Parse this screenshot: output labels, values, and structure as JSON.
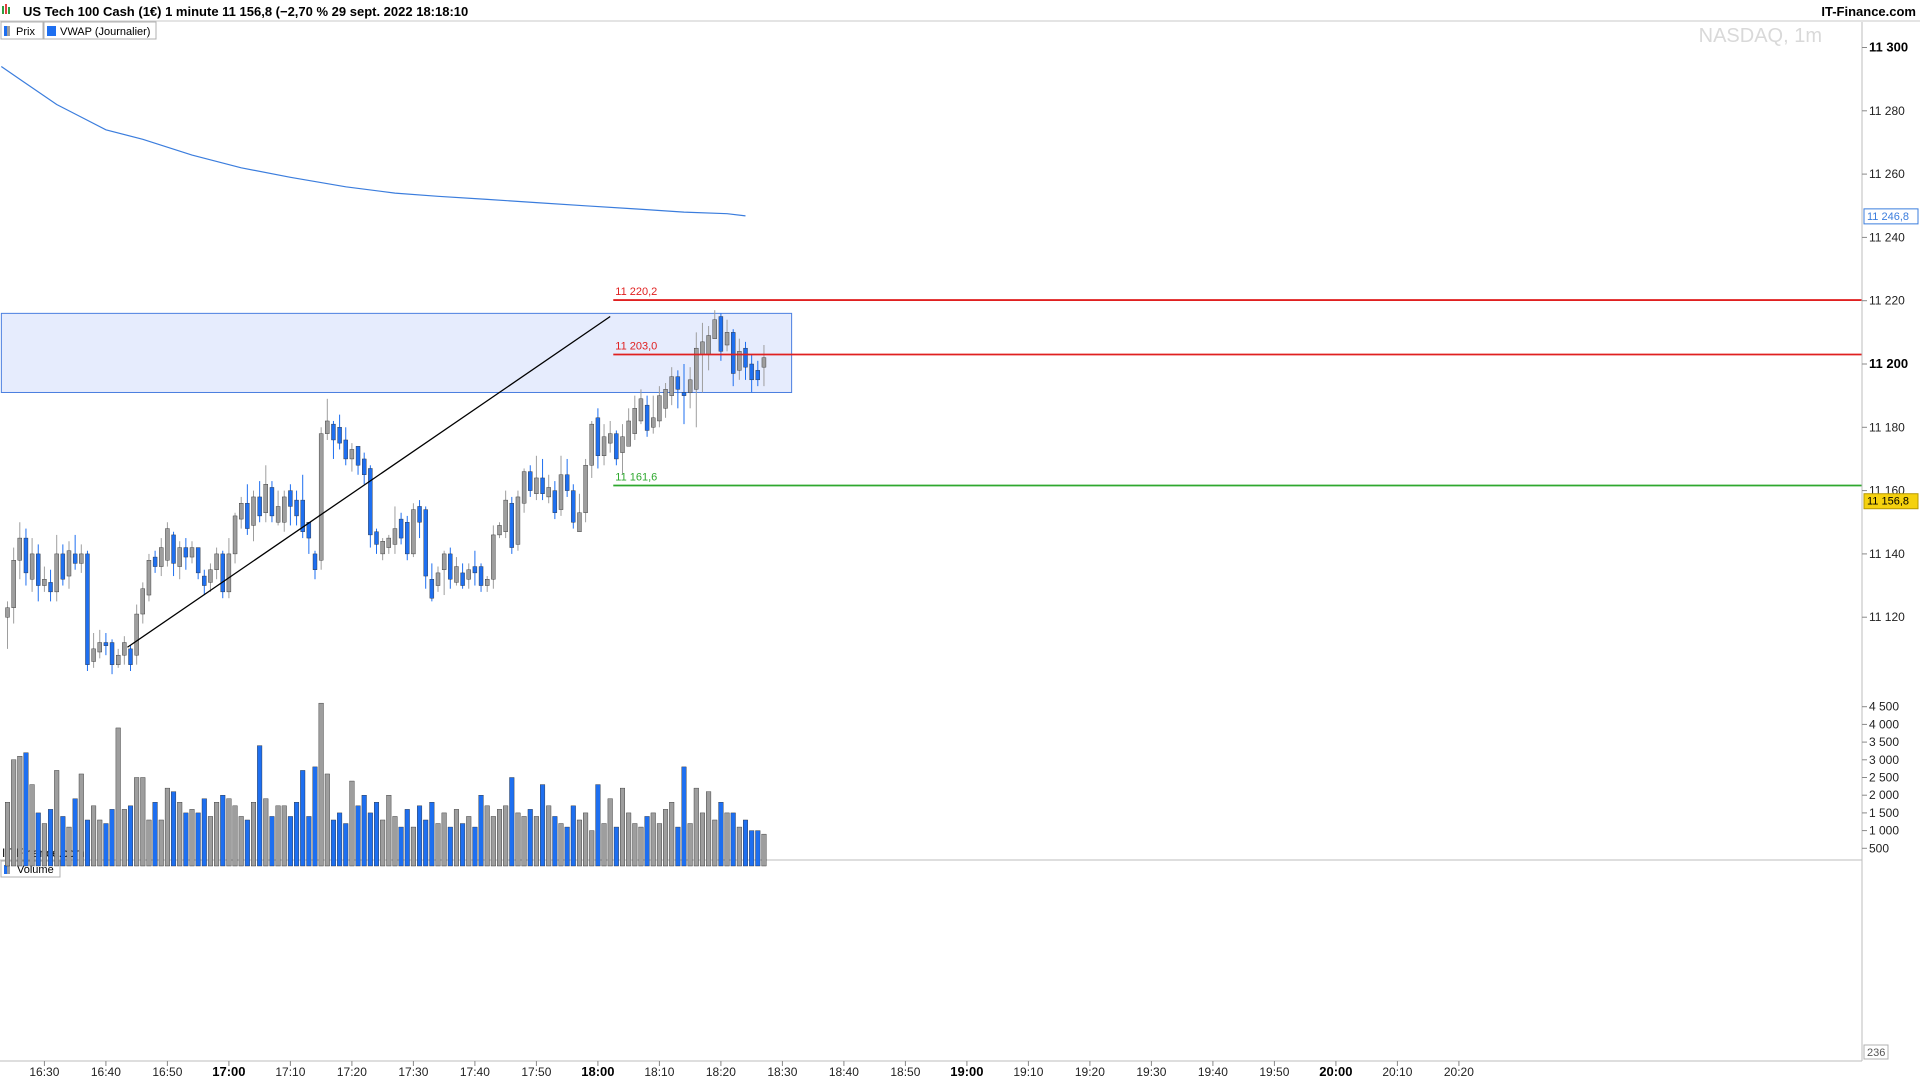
{
  "header": {
    "instrument_label": "US Tech 100 Cash (1€) 1 minute 11 156,8 (−2,70 % 29 sept. 2022 18:18:10",
    "brand_right": "IT-Finance.com"
  },
  "legend": {
    "price_label": "Prix",
    "vwap_label": "VWAP (Journalier)",
    "volume_label": "Volume"
  },
  "watermark": "NASDAQ, 1m",
  "brand_bottom_left": "IT-Finance.com",
  "colors": {
    "up": "#1e6ff0",
    "down": "#9e9e9e",
    "vwap": "#3b7ddd",
    "resistance": "#e02020",
    "support": "#2ea82e",
    "zone_fill": "#e6ecfd",
    "zone_border": "#4a7fe0",
    "current_price_bg": "#f5d10e"
  },
  "chart_data": {
    "type": "candlestick",
    "title": "US Tech 100 Cash (1€) 1 minute",
    "y_ticks": [
      11120,
      11140,
      11160,
      11180,
      11200,
      11220,
      11240,
      11260,
      11280,
      11300
    ],
    "y_tick_labels": [
      "11 120",
      "11 140",
      "11 160",
      "11 180",
      "11 200",
      "11 220",
      "11 240",
      "11 260",
      "11 280",
      "11 300"
    ],
    "y_tick_bold": [
      11200,
      11300
    ],
    "x_ticks": [
      "16:30",
      "16:40",
      "16:50",
      "17:00",
      "17:10",
      "17:20",
      "17:30",
      "17:40",
      "17:50",
      "18:00",
      "18:10",
      "18:20",
      "18:30",
      "18:40",
      "18:50",
      "19:00",
      "19:10",
      "19:20",
      "19:30",
      "19:40",
      "19:50",
      "20:00",
      "20:10",
      "20:20"
    ],
    "x_tick_bold": [
      "17:00",
      "18:00",
      "19:00",
      "20:00"
    ],
    "start_time": "16:24",
    "current_price": 11156.8,
    "current_price_label": "11 156,8",
    "vwap_last_label": "11 246,8",
    "vwap_last": 11246.8,
    "vwap": [
      [
        -1,
        11294
      ],
      [
        2,
        11290
      ],
      [
        8,
        11282
      ],
      [
        11,
        11279
      ],
      [
        16,
        11274
      ],
      [
        22,
        11271
      ],
      [
        30,
        11266
      ],
      [
        38,
        11262
      ],
      [
        46,
        11259
      ],
      [
        55,
        11256
      ],
      [
        63,
        11254
      ],
      [
        70,
        11253
      ],
      [
        78,
        11252
      ],
      [
        86,
        11251
      ],
      [
        94,
        11250
      ],
      [
        102,
        11249
      ],
      [
        110,
        11248
      ],
      [
        117,
        11247.5
      ],
      [
        120,
        11246.8
      ]
    ],
    "levels": [
      {
        "value": 11220.2,
        "label": "11 220,2",
        "color": "resistance",
        "from": 98.5
      },
      {
        "value": 11203.0,
        "label": "11 203,0",
        "color": "resistance",
        "from": 98.5
      },
      {
        "value": 11161.6,
        "label": "11 161,6",
        "color": "support",
        "from": 98.5
      }
    ],
    "zone": {
      "from": -1,
      "to": 127.5,
      "top": 11216,
      "bottom": 11191
    },
    "trendline": {
      "from": [
        19.5,
        11110.5
      ],
      "to": [
        98,
        11215
      ]
    },
    "volume_ticks": [
      500,
      1000,
      1500,
      2000,
      2500,
      3000,
      3500,
      4000,
      4500
    ],
    "volume_tick_labels": [
      "500",
      "1 000",
      "1 500",
      "2 000",
      "2 500",
      "3 000",
      "3 500",
      "4 000",
      "4 500"
    ],
    "last_volume_label": "236",
    "candles": [
      [
        11123,
        11120,
        11125,
        11110,
        1800
      ],
      [
        11138,
        11123,
        11142,
        11118,
        3000
      ],
      [
        11145,
        11138,
        11150,
        11132,
        3100
      ],
      [
        11134,
        11145,
        11148,
        11130,
        3200
      ],
      [
        11140,
        11132,
        11145,
        11128,
        2300
      ],
      [
        11130,
        11140,
        11143,
        11125,
        1500
      ],
      [
        11132,
        11130,
        11136,
        11128,
        1200
      ],
      [
        11128,
        11131,
        11135,
        11125,
        1600
      ],
      [
        11140,
        11128,
        11146,
        11125,
        2700
      ],
      [
        11132,
        11140,
        11143,
        11130,
        1400
      ],
      [
        11141,
        11133,
        11144,
        11129,
        1100
      ],
      [
        11137,
        11140,
        11146,
        11135,
        1900
      ],
      [
        11140,
        11137,
        11143,
        11134,
        2600
      ],
      [
        11105,
        11140,
        11141,
        11103,
        1300
      ],
      [
        11110,
        11106,
        11115,
        11104,
        1700
      ],
      [
        11112,
        11109,
        11116,
        11107,
        1300
      ],
      [
        11111,
        11112,
        11115,
        11108,
        1200
      ],
      [
        11105,
        11112,
        11113,
        11102,
        1600
      ],
      [
        11108,
        11105,
        11110,
        11104,
        3900
      ],
      [
        11112,
        11108,
        11114,
        11105,
        1600
      ],
      [
        11105,
        11110,
        11111,
        11103,
        1700
      ],
      [
        11121,
        11108,
        11124,
        11105,
        2500
      ],
      [
        11129,
        11121,
        11131,
        11118,
        2500
      ],
      [
        11138,
        11127,
        11140,
        11125,
        1300
      ],
      [
        11136,
        11139,
        11141,
        11134,
        1800
      ],
      [
        11142,
        11136,
        11145,
        11133,
        1300
      ],
      [
        11148,
        11138,
        11150,
        11136,
        2200
      ],
      [
        11137,
        11146,
        11147,
        11133,
        2100
      ],
      [
        11142,
        11136,
        11144,
        11132,
        1800
      ],
      [
        11139,
        11142,
        11145,
        11135,
        1500
      ],
      [
        11142,
        11139,
        11144,
        11137,
        1600
      ],
      [
        11134,
        11142,
        11142,
        11132,
        1500
      ],
      [
        11130,
        11133,
        11135,
        11127,
        1900
      ],
      [
        11135,
        11131,
        11137,
        11128,
        1400
      ],
      [
        11140,
        11135,
        11142,
        11132,
        1800
      ],
      [
        11128,
        11140,
        11141,
        11126,
        2000
      ],
      [
        11140,
        11128,
        11145,
        11126,
        1900
      ],
      [
        11152,
        11140,
        11153,
        11137,
        1700
      ],
      [
        11156,
        11151,
        11158,
        11148,
        1400
      ],
      [
        11148,
        11156,
        11162,
        11146,
        1300
      ],
      [
        11158,
        11149,
        11160,
        11144,
        1800
      ],
      [
        11152,
        11158,
        11163,
        11150,
        3400
      ],
      [
        11162,
        11153,
        11168,
        11150,
        1900
      ],
      [
        11152,
        11161,
        11163,
        11150,
        1400
      ],
      [
        11155,
        11150,
        11160,
        11149,
        1700
      ],
      [
        11158,
        11150,
        11160,
        11147,
        1700
      ],
      [
        11155,
        11160,
        11162,
        11149,
        1400
      ],
      [
        11152,
        11157,
        11160,
        11149,
        1800
      ],
      [
        11147,
        11157,
        11165,
        11145,
        2700
      ],
      [
        11145,
        11150,
        11150,
        11140,
        1400
      ],
      [
        11135,
        11140,
        11141,
        11132,
        2800
      ],
      [
        11178,
        11138,
        11180,
        11135,
        4600
      ],
      [
        11182,
        11178,
        11189,
        11176,
        2600
      ],
      [
        11176,
        11181,
        11182,
        11170,
        1300
      ],
      [
        11175,
        11180,
        11184,
        11173,
        1500
      ],
      [
        11170,
        11176,
        11180,
        11168,
        1200
      ],
      [
        11173,
        11170,
        11175,
        11166,
        2400
      ],
      [
        11168,
        11174,
        11174,
        11165,
        1700
      ],
      [
        11165,
        11170,
        11172,
        11162,
        2000
      ],
      [
        11146,
        11167,
        11168,
        11142,
        1500
      ],
      [
        11143,
        11147,
        11148,
        11140,
        1800
      ],
      [
        11144,
        11140,
        11145,
        11138,
        1300
      ],
      [
        11145,
        11142,
        11146,
        11140,
        2000
      ],
      [
        11148,
        11143,
        11155,
        11140,
        1400
      ],
      [
        11145,
        11151,
        11153,
        11143,
        1100
      ],
      [
        11140,
        11150,
        11152,
        11138,
        1600
      ],
      [
        11154,
        11140,
        11156,
        11139,
        1100
      ],
      [
        11150,
        11155,
        11157,
        11145,
        1700
      ],
      [
        11133,
        11154,
        11155,
        11129,
        1300
      ],
      [
        11126,
        11132,
        11137,
        11125,
        1800
      ],
      [
        11134,
        11130,
        11136,
        11128,
        1200
      ],
      [
        11140,
        11135,
        11141,
        11127,
        1500
      ],
      [
        11132,
        11140,
        11142,
        11129,
        1100
      ],
      [
        11136,
        11131,
        11139,
        11130,
        1600
      ],
      [
        11130,
        11134,
        11137,
        11129,
        1200
      ],
      [
        11135,
        11132,
        11137,
        11129,
        1400
      ],
      [
        11134,
        11136,
        11141,
        11130,
        1100
      ],
      [
        11130,
        11136,
        11137,
        11128,
        2000
      ],
      [
        11132,
        11130,
        11133,
        11128,
        1700
      ],
      [
        11146,
        11132,
        11149,
        11129,
        1400
      ],
      [
        11149,
        11146,
        11150,
        11145,
        1600
      ],
      [
        11157,
        11147,
        11160,
        11145,
        1700
      ],
      [
        11142,
        11156,
        11158,
        11140,
        2500
      ],
      [
        11158,
        11143,
        11160,
        11141,
        1500
      ],
      [
        11166,
        11156,
        11167,
        11153,
        1400
      ],
      [
        11160,
        11166,
        11168,
        11158,
        1600
      ],
      [
        11164,
        11159,
        11171,
        11157,
        1400
      ],
      [
        11159,
        11164,
        11170,
        11157,
        2300
      ],
      [
        11161,
        11158,
        11165,
        11156,
        1700
      ],
      [
        11153,
        11160,
        11163,
        11151,
        1400
      ],
      [
        11165,
        11154,
        11171,
        11152,
        1200
      ],
      [
        11160,
        11165,
        11170,
        11158,
        1100
      ],
      [
        11150,
        11160,
        11162,
        11148,
        1700
      ],
      [
        11153,
        11147,
        11159,
        11148,
        1300
      ],
      [
        11168,
        11153,
        11170,
        11150,
        1500
      ],
      [
        11181,
        11168,
        11182,
        11164,
        1000
      ],
      [
        11171,
        11183,
        11186,
        11167,
        2300
      ],
      [
        11177,
        11171,
        11181,
        11168,
        1200
      ],
      [
        11178,
        11175,
        11182,
        11172,
        1900
      ],
      [
        11170,
        11178,
        11179,
        11168,
        1100
      ],
      [
        11177,
        11172,
        11181,
        11165,
        2200
      ],
      [
        11182,
        11174,
        11186,
        11176,
        1500
      ],
      [
        11186,
        11178,
        11190,
        11176,
        1200
      ],
      [
        11189,
        11182,
        11192,
        11181,
        1100
      ],
      [
        11179,
        11187,
        11190,
        11177,
        1400
      ],
      [
        11183,
        11180,
        11190,
        11178,
        1500
      ],
      [
        11190,
        11182,
        11193,
        11180,
        1200
      ],
      [
        11192,
        11186,
        11194,
        11183,
        1600
      ],
      [
        11196,
        11190,
        11199,
        11187,
        1800
      ],
      [
        11192,
        11196,
        11198,
        11186,
        1100
      ],
      [
        11190,
        11191,
        11200,
        11181,
        2800
      ],
      [
        11195,
        11191,
        11199,
        11186,
        1200
      ],
      [
        11205,
        11192,
        11210,
        11180,
        2200
      ],
      [
        11207,
        11203,
        11213,
        11191,
        1500
      ],
      [
        11209,
        11203,
        11212,
        11198,
        2100
      ],
      [
        11214,
        11208,
        11217,
        11210,
        1300
      ],
      [
        11204,
        11215,
        11216,
        11201,
        1800
      ],
      [
        11210,
        11206,
        11214,
        11204,
        1500
      ],
      [
        11197,
        11210,
        11211,
        11193,
        1500
      ],
      [
        11204,
        11198,
        11208,
        11195,
        1100
      ],
      [
        11199,
        11205,
        11207,
        11195,
        1300
      ],
      [
        11195,
        11200,
        11203,
        11191,
        1000
      ],
      [
        11195,
        11198,
        11201,
        11193,
        1000
      ],
      [
        11202,
        11199,
        11206,
        11193,
        900
      ]
    ]
  }
}
